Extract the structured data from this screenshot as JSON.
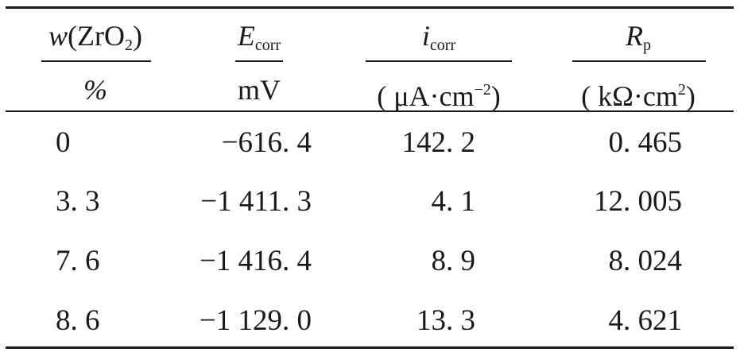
{
  "table": {
    "header": {
      "wt_sym": "w",
      "wt_paren_open": "(",
      "wt_species": "ZrO",
      "wt_sub": "2",
      "wt_paren_close": ")",
      "wt_unit": "%",
      "e_sym": "E",
      "e_sub": "corr",
      "e_unit": "mV",
      "i_sym": "i",
      "i_sub": "corr",
      "i_unit_pre": "( μA·cm",
      "i_unit_sup": "−2",
      "i_unit_post": ")",
      "r_sym": "R",
      "r_sub": "p",
      "r_unit_pre": "( kΩ·cm",
      "r_unit_sup": "2",
      "r_unit_post": ")"
    },
    "rows": [
      {
        "w": "0",
        "ecorr": "−616. 4",
        "icorr": "142. 2",
        "rp": "0. 465"
      },
      {
        "w": "3. 3",
        "ecorr": "−1 411. 3",
        "icorr": "4. 1",
        "rp": "12. 005"
      },
      {
        "w": "7. 6",
        "ecorr": "−1 416. 4",
        "icorr": "8. 9",
        "rp": "8. 024"
      },
      {
        "w": "8. 6",
        "ecorr": "−1 129. 0",
        "icorr": "13. 3",
        "rp": "4. 621"
      }
    ]
  }
}
